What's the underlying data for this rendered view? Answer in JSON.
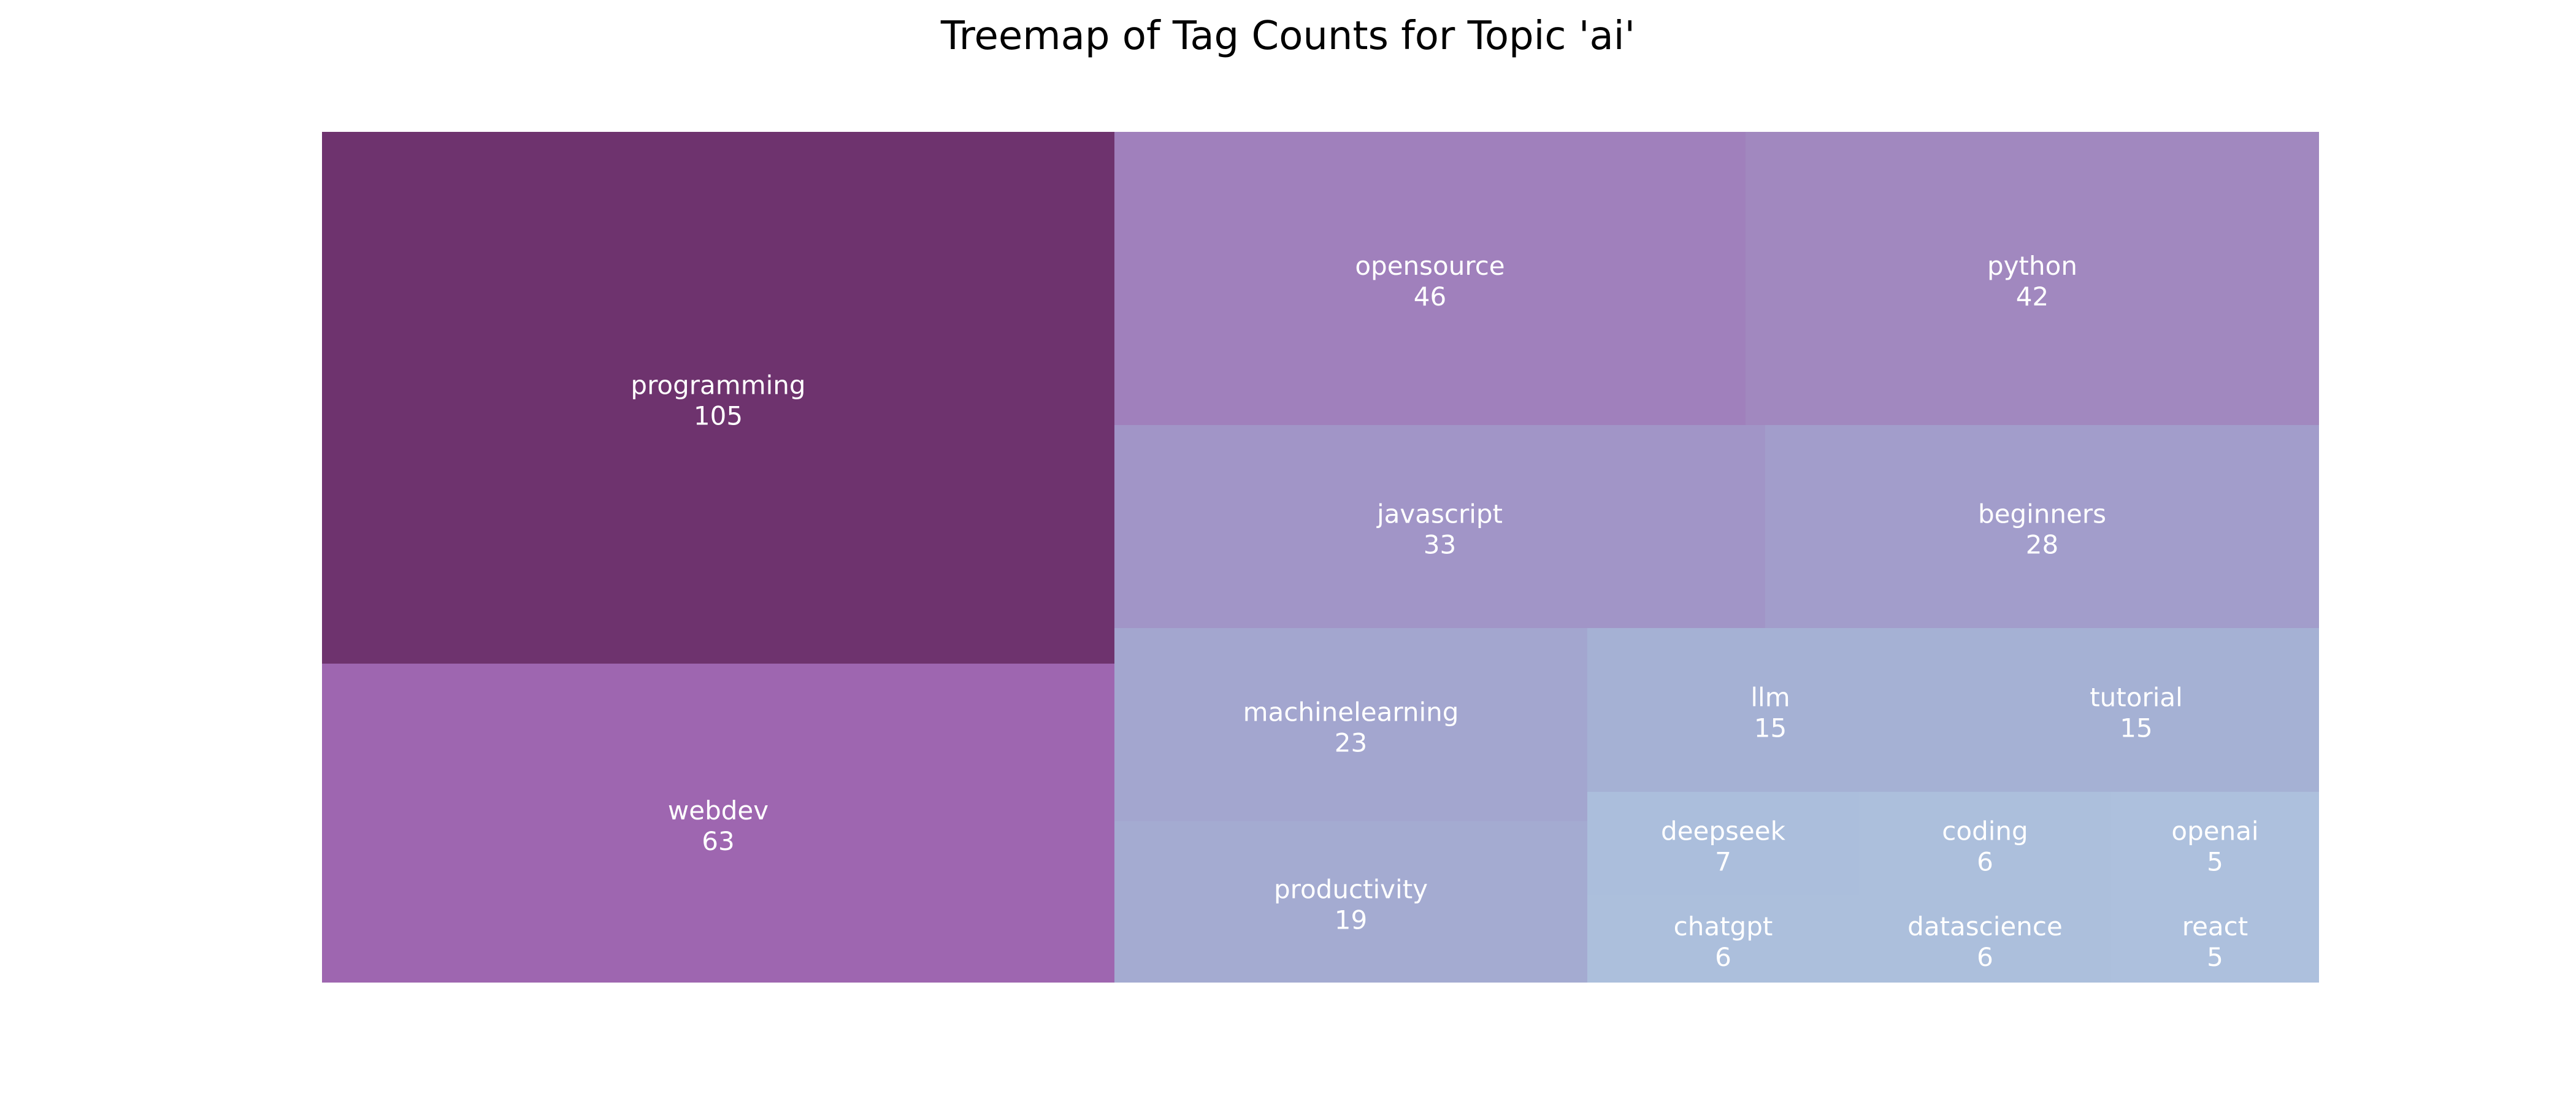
{
  "chart_data": {
    "type": "treemap",
    "title": "Treemap of Tag Counts for Topic 'ai'",
    "items": [
      {
        "label": "programming",
        "value": 105,
        "color": "#6e336e"
      },
      {
        "label": "webdev",
        "value": 63,
        "color": "#9e66b0"
      },
      {
        "label": "opensource",
        "value": 46,
        "color": "#a080bc"
      },
      {
        "label": "python",
        "value": 42,
        "color": "#a188bf"
      },
      {
        "label": "javascript",
        "value": 33,
        "color": "#a195c7"
      },
      {
        "label": "beginners",
        "value": 28,
        "color": "#a29dcb"
      },
      {
        "label": "machinelearning",
        "value": 23,
        "color": "#a3a6cf"
      },
      {
        "label": "productivity",
        "value": 19,
        "color": "#a4abd1"
      },
      {
        "label": "llm",
        "value": 15,
        "color": "#a5b1d4"
      },
      {
        "label": "tutorial",
        "value": 15,
        "color": "#a5b1d4"
      },
      {
        "label": "deepseek",
        "value": 7,
        "color": "#abbedc"
      },
      {
        "label": "coding",
        "value": 6,
        "color": "#acbfdc"
      },
      {
        "label": "openai",
        "value": 5,
        "color": "#adc0dd"
      },
      {
        "label": "chatgpt",
        "value": 6,
        "color": "#acbfdc"
      },
      {
        "label": "datascience",
        "value": 6,
        "color": "#acbfdc"
      },
      {
        "label": "react",
        "value": 5,
        "color": "#adc0dd"
      }
    ],
    "label_color": "#ffffff"
  }
}
